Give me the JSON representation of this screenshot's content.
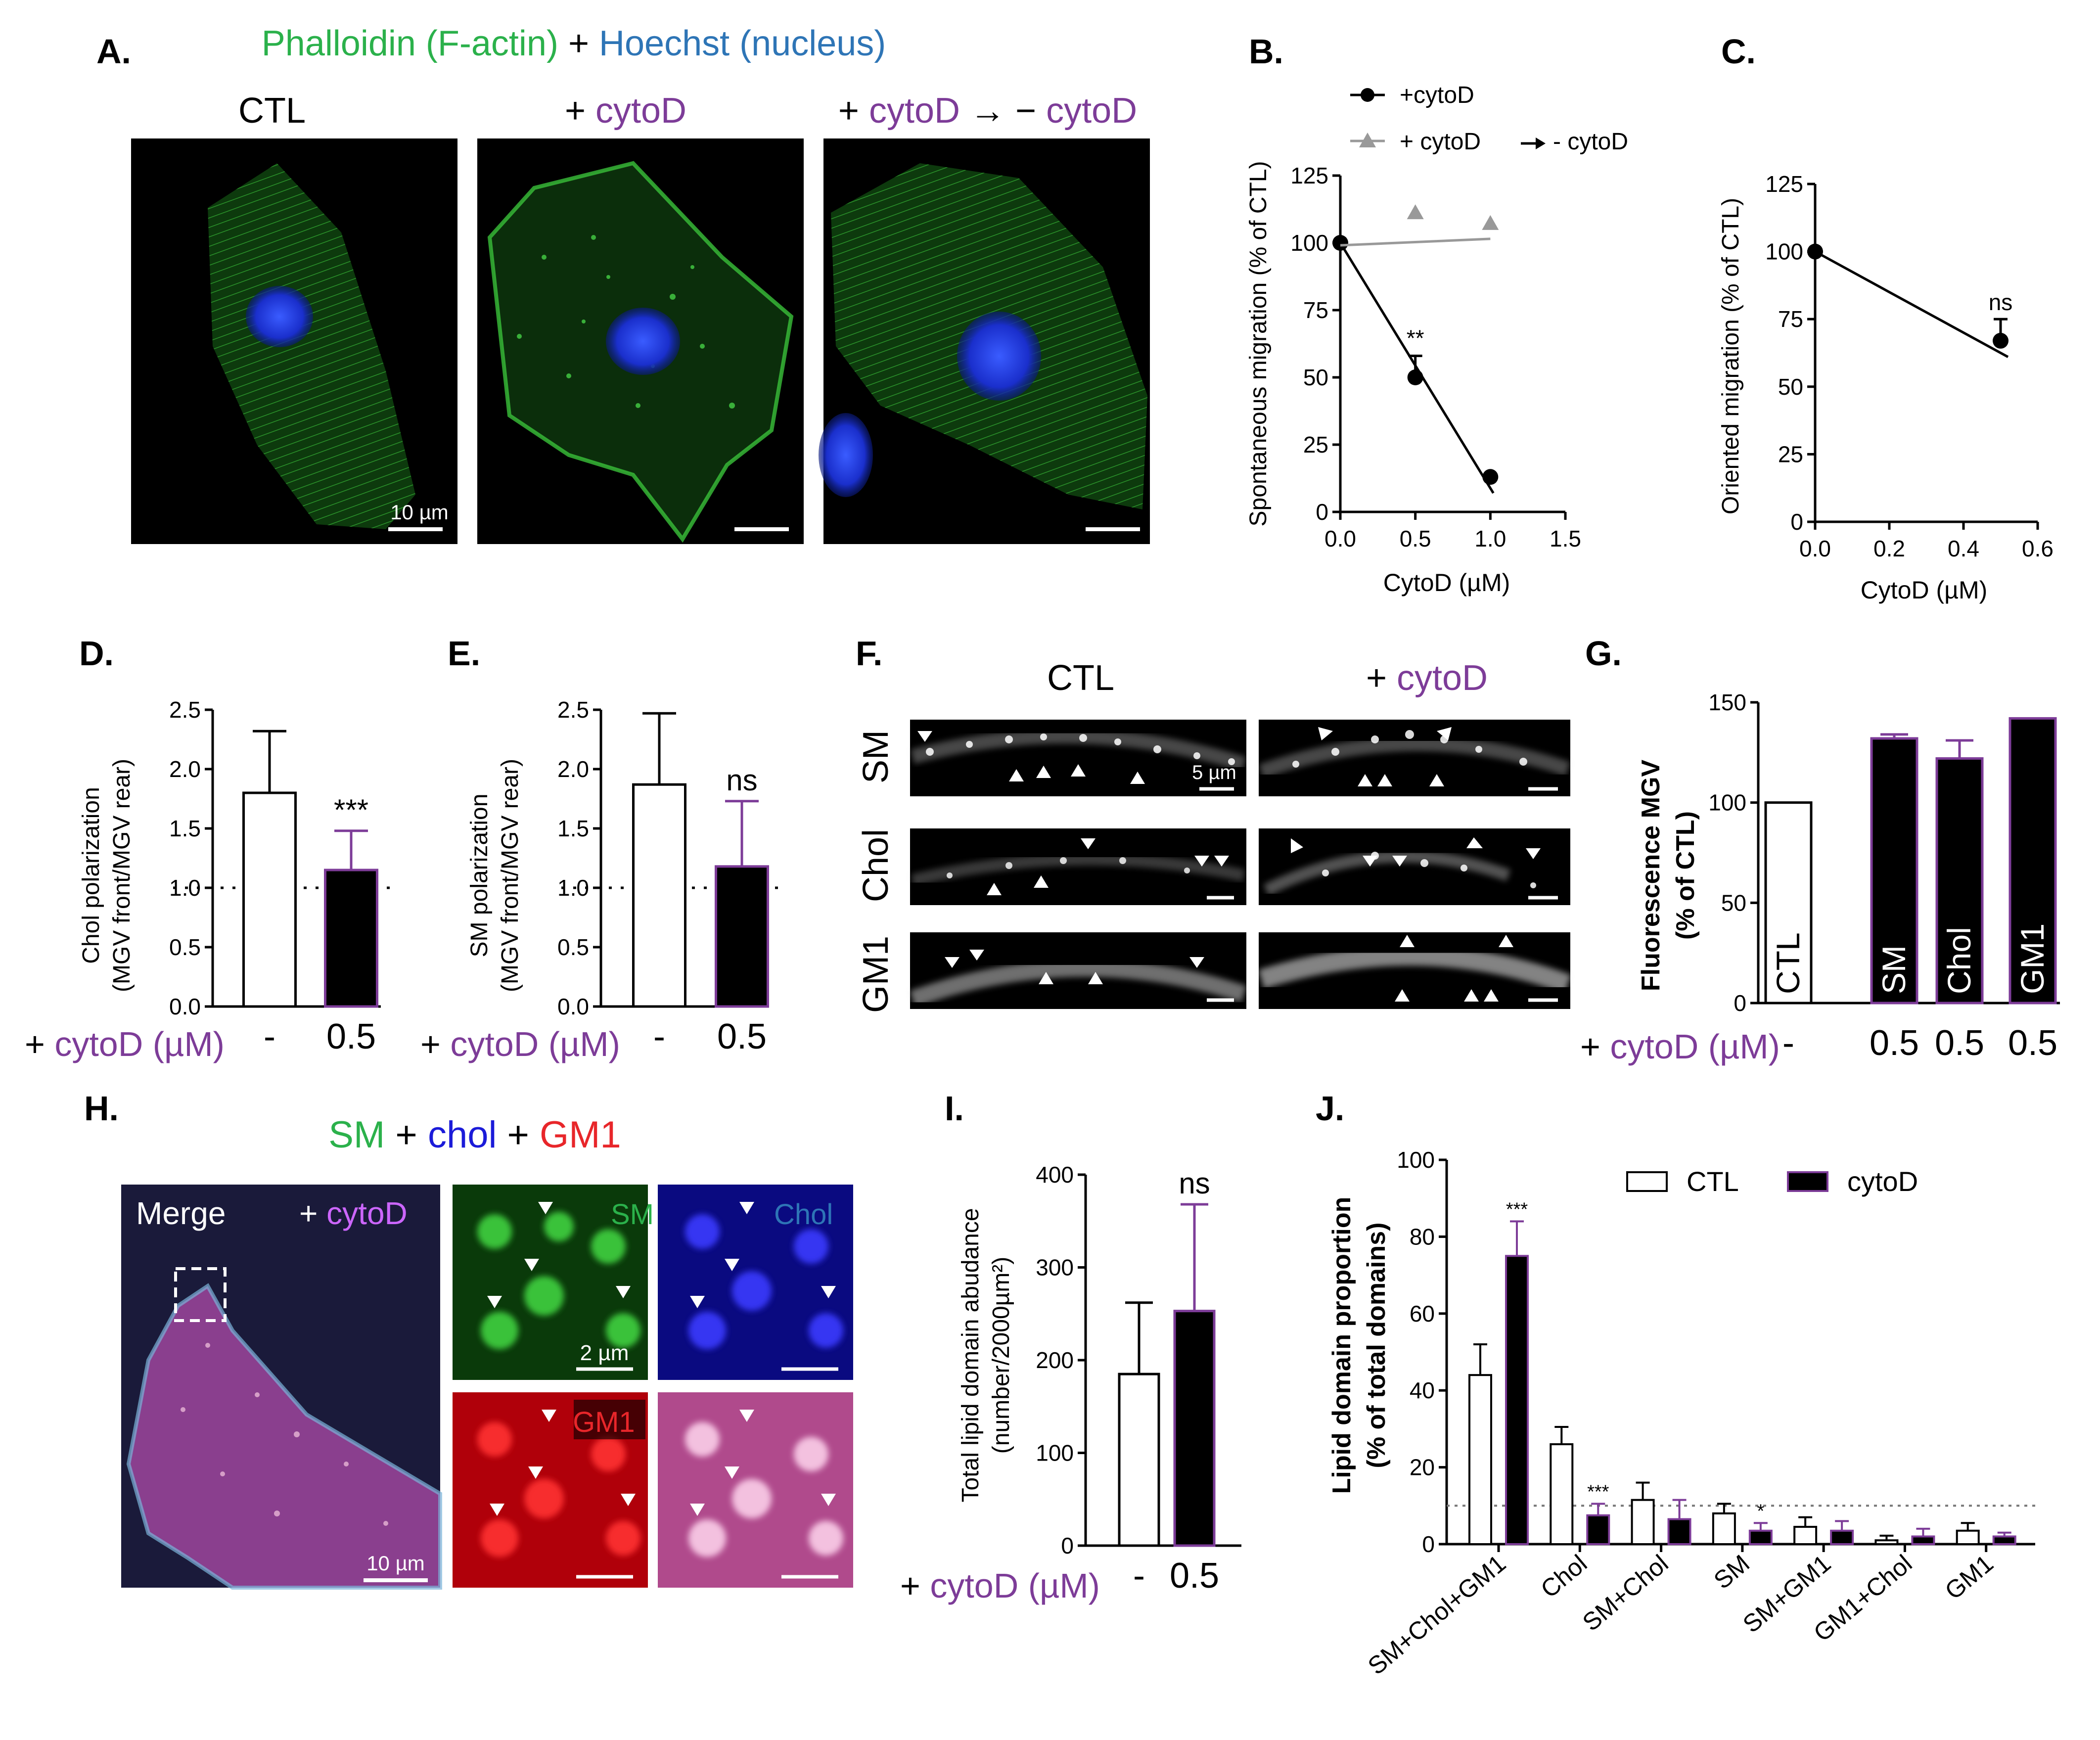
{
  "panels": {
    "A": {
      "label": "A.",
      "header": {
        "part1": "Phalloidin (F-actin)",
        "plus": "+",
        "part2": "Hoechst (nucleus)"
      },
      "conditions": {
        "ctl": "CTL",
        "cyto_plus": "+",
        "cyto_name": "cytoD",
        "wash_plus": "+",
        "wash_name1": "cytoD",
        "wash_arrow": "→",
        "wash_minus": "−",
        "wash_name2": "cytoD"
      },
      "scale": "10 µm"
    },
    "B": {
      "label": "B."
    },
    "C": {
      "label": "C."
    },
    "D": {
      "label": "D."
    },
    "E": {
      "label": "E."
    },
    "F": {
      "label": "F.",
      "cols": {
        "ctl": "CTL",
        "plus": "+",
        "cyto": "cytoD"
      },
      "rows": [
        "SM",
        "Chol",
        "GM1"
      ],
      "scale": "5 µm"
    },
    "G": {
      "label": "G."
    },
    "H": {
      "label": "H.",
      "title": {
        "sm": "SM",
        "plus1": "+",
        "chol": "chol",
        "plus2": "+",
        "gm1": "GM1"
      },
      "merge": "Merge",
      "merge_plus": "+",
      "merge_cyto": "cytoD",
      "scale_big": "10 µm",
      "ch_sm": "SM",
      "ch_chol": "Chol",
      "ch_gm1": "GM1",
      "scale_small": "2 µm"
    },
    "I": {
      "label": "I."
    },
    "J": {
      "label": "J."
    }
  },
  "colors": {
    "green": "#2bb14b",
    "purple": "#7d3c98",
    "blue": "#2e75b6",
    "red": "#e8262a",
    "grey": "#999999"
  },
  "chart_data": [
    {
      "panel": "B",
      "type": "scatter",
      "xlabel": "CytoD (µM)",
      "ylabel": "Spontaneous migration (% of CTL)",
      "xlim": [
        0,
        1.5
      ],
      "ylim": [
        0,
        125
      ],
      "xticks": [
        "0.0",
        "0.5",
        "1.0",
        "1.5"
      ],
      "yticks": [
        "0",
        "25",
        "50",
        "75",
        "100",
        "125"
      ],
      "series": [
        {
          "name": "+cytoD",
          "x": [
            0,
            0.5,
            1.0
          ],
          "y": [
            100,
            50,
            13
          ],
          "err": [
            0,
            8,
            0
          ],
          "annotations": [
            {
              "x": 0.5,
              "text": "**"
            }
          ]
        },
        {
          "name": "+ cytoD",
          "name_suffix": "- cytoD",
          "x": [
            0.5,
            1.0
          ],
          "y": [
            111,
            107
          ],
          "err": [
            0,
            0
          ]
        }
      ]
    },
    {
      "panel": "C",
      "type": "scatter",
      "xlabel": "CytoD (µM)",
      "ylabel": "Oriented migration (% of CTL)",
      "xlim": [
        0,
        0.6
      ],
      "ylim": [
        0,
        125
      ],
      "xticks": [
        "0.0",
        "0.2",
        "0.4",
        "0.6"
      ],
      "yticks": [
        "0",
        "25",
        "50",
        "75",
        "100",
        "125"
      ],
      "series": [
        {
          "x": [
            0,
            0.5
          ],
          "y": [
            100,
            67
          ],
          "err": [
            0,
            8
          ]
        }
      ],
      "annotations": [
        {
          "x": 0.5,
          "text": "ns"
        }
      ]
    },
    {
      "panel": "D",
      "type": "bar",
      "ylabel": "Chol polarization",
      "ylabel2": "(MGV front/MGV rear)",
      "xaxis_label": {
        "plus": "+",
        "name": "cytoD (µM)"
      },
      "categories": [
        "-",
        "0.5"
      ],
      "values": [
        1.8,
        1.15
      ],
      "errors": [
        0.52,
        0.33
      ],
      "fills": [
        "white",
        "black"
      ],
      "ylim": [
        0,
        2.5
      ],
      "yticks": [
        "0.0",
        "0.5",
        "1.0",
        "1.5",
        "2.0",
        "2.5"
      ],
      "reference_line": 1.0,
      "annotations": [
        "",
        "***"
      ]
    },
    {
      "panel": "E",
      "type": "bar",
      "ylabel": "SM polarization",
      "ylabel2": "(MGV front/MGV rear)",
      "xaxis_label": {
        "plus": "+",
        "name": "cytoD (µM)"
      },
      "categories": [
        "-",
        "0.5"
      ],
      "values": [
        1.87,
        1.18
      ],
      "errors": [
        0.6,
        0.55
      ],
      "fills": [
        "white",
        "black"
      ],
      "ylim": [
        0,
        2.5
      ],
      "yticks": [
        "0.0",
        "0.5",
        "1.0",
        "1.5",
        "2.0",
        "2.5"
      ],
      "reference_line": 1.0,
      "annotations": [
        "",
        "ns"
      ]
    },
    {
      "panel": "G",
      "type": "bar",
      "ylabel": "Fluorescence MGV",
      "ylabel2": "(% of CTL)",
      "xaxis_label": {
        "plus": "+",
        "name": "cytoD (µM)"
      },
      "categories": [
        "-",
        "0.5",
        "0.5",
        "0.5"
      ],
      "bar_labels": [
        "CTL",
        "SM",
        "Chol",
        "GM1"
      ],
      "values": [
        100,
        132,
        122,
        142
      ],
      "errors": [
        0,
        2,
        9,
        0
      ],
      "fills": [
        "white",
        "black",
        "black",
        "black"
      ],
      "ylim": [
        0,
        150
      ],
      "yticks": [
        "0",
        "50",
        "100",
        "150"
      ]
    },
    {
      "panel": "I",
      "type": "bar",
      "ylabel": "Total lipid domain abudance",
      "ylabel2": "(number/2000µm²)",
      "xaxis_label": {
        "plus": "+",
        "name": "cytoD (µM)"
      },
      "categories": [
        "-",
        "0.5"
      ],
      "values": [
        185,
        253
      ],
      "errors": [
        77,
        115
      ],
      "fills": [
        "white",
        "black"
      ],
      "ylim": [
        0,
        400
      ],
      "yticks": [
        "0",
        "100",
        "200",
        "300",
        "400"
      ],
      "annotations": [
        "",
        "ns"
      ]
    },
    {
      "panel": "J",
      "type": "bar",
      "ylabel": "Lipid domain proportion",
      "ylabel2": "(% of total domains)",
      "ylim": [
        0,
        100
      ],
      "yticks": [
        "0",
        "20",
        "40",
        "60",
        "80",
        "100"
      ],
      "reference_line": 10,
      "categories": [
        "SM+Chol+GM1",
        "Chol",
        "SM+Chol",
        "SM",
        "SM+GM1",
        "GM1+Chol",
        "GM1"
      ],
      "series": [
        {
          "name": "CTL",
          "values": [
            44,
            26,
            11.5,
            8,
            4.5,
            1,
            3.5
          ],
          "errors": [
            8,
            4.5,
            4.5,
            2.5,
            2.5,
            1.2,
            2
          ]
        },
        {
          "name": "cytoD",
          "values": [
            75,
            7.5,
            6.5,
            3.5,
            3.5,
            2,
            2
          ],
          "errors": [
            9,
            3,
            5,
            2,
            2.5,
            2,
            1
          ],
          "annotations": [
            "***",
            "***",
            "",
            "*",
            "",
            "",
            ""
          ]
        }
      ]
    }
  ]
}
